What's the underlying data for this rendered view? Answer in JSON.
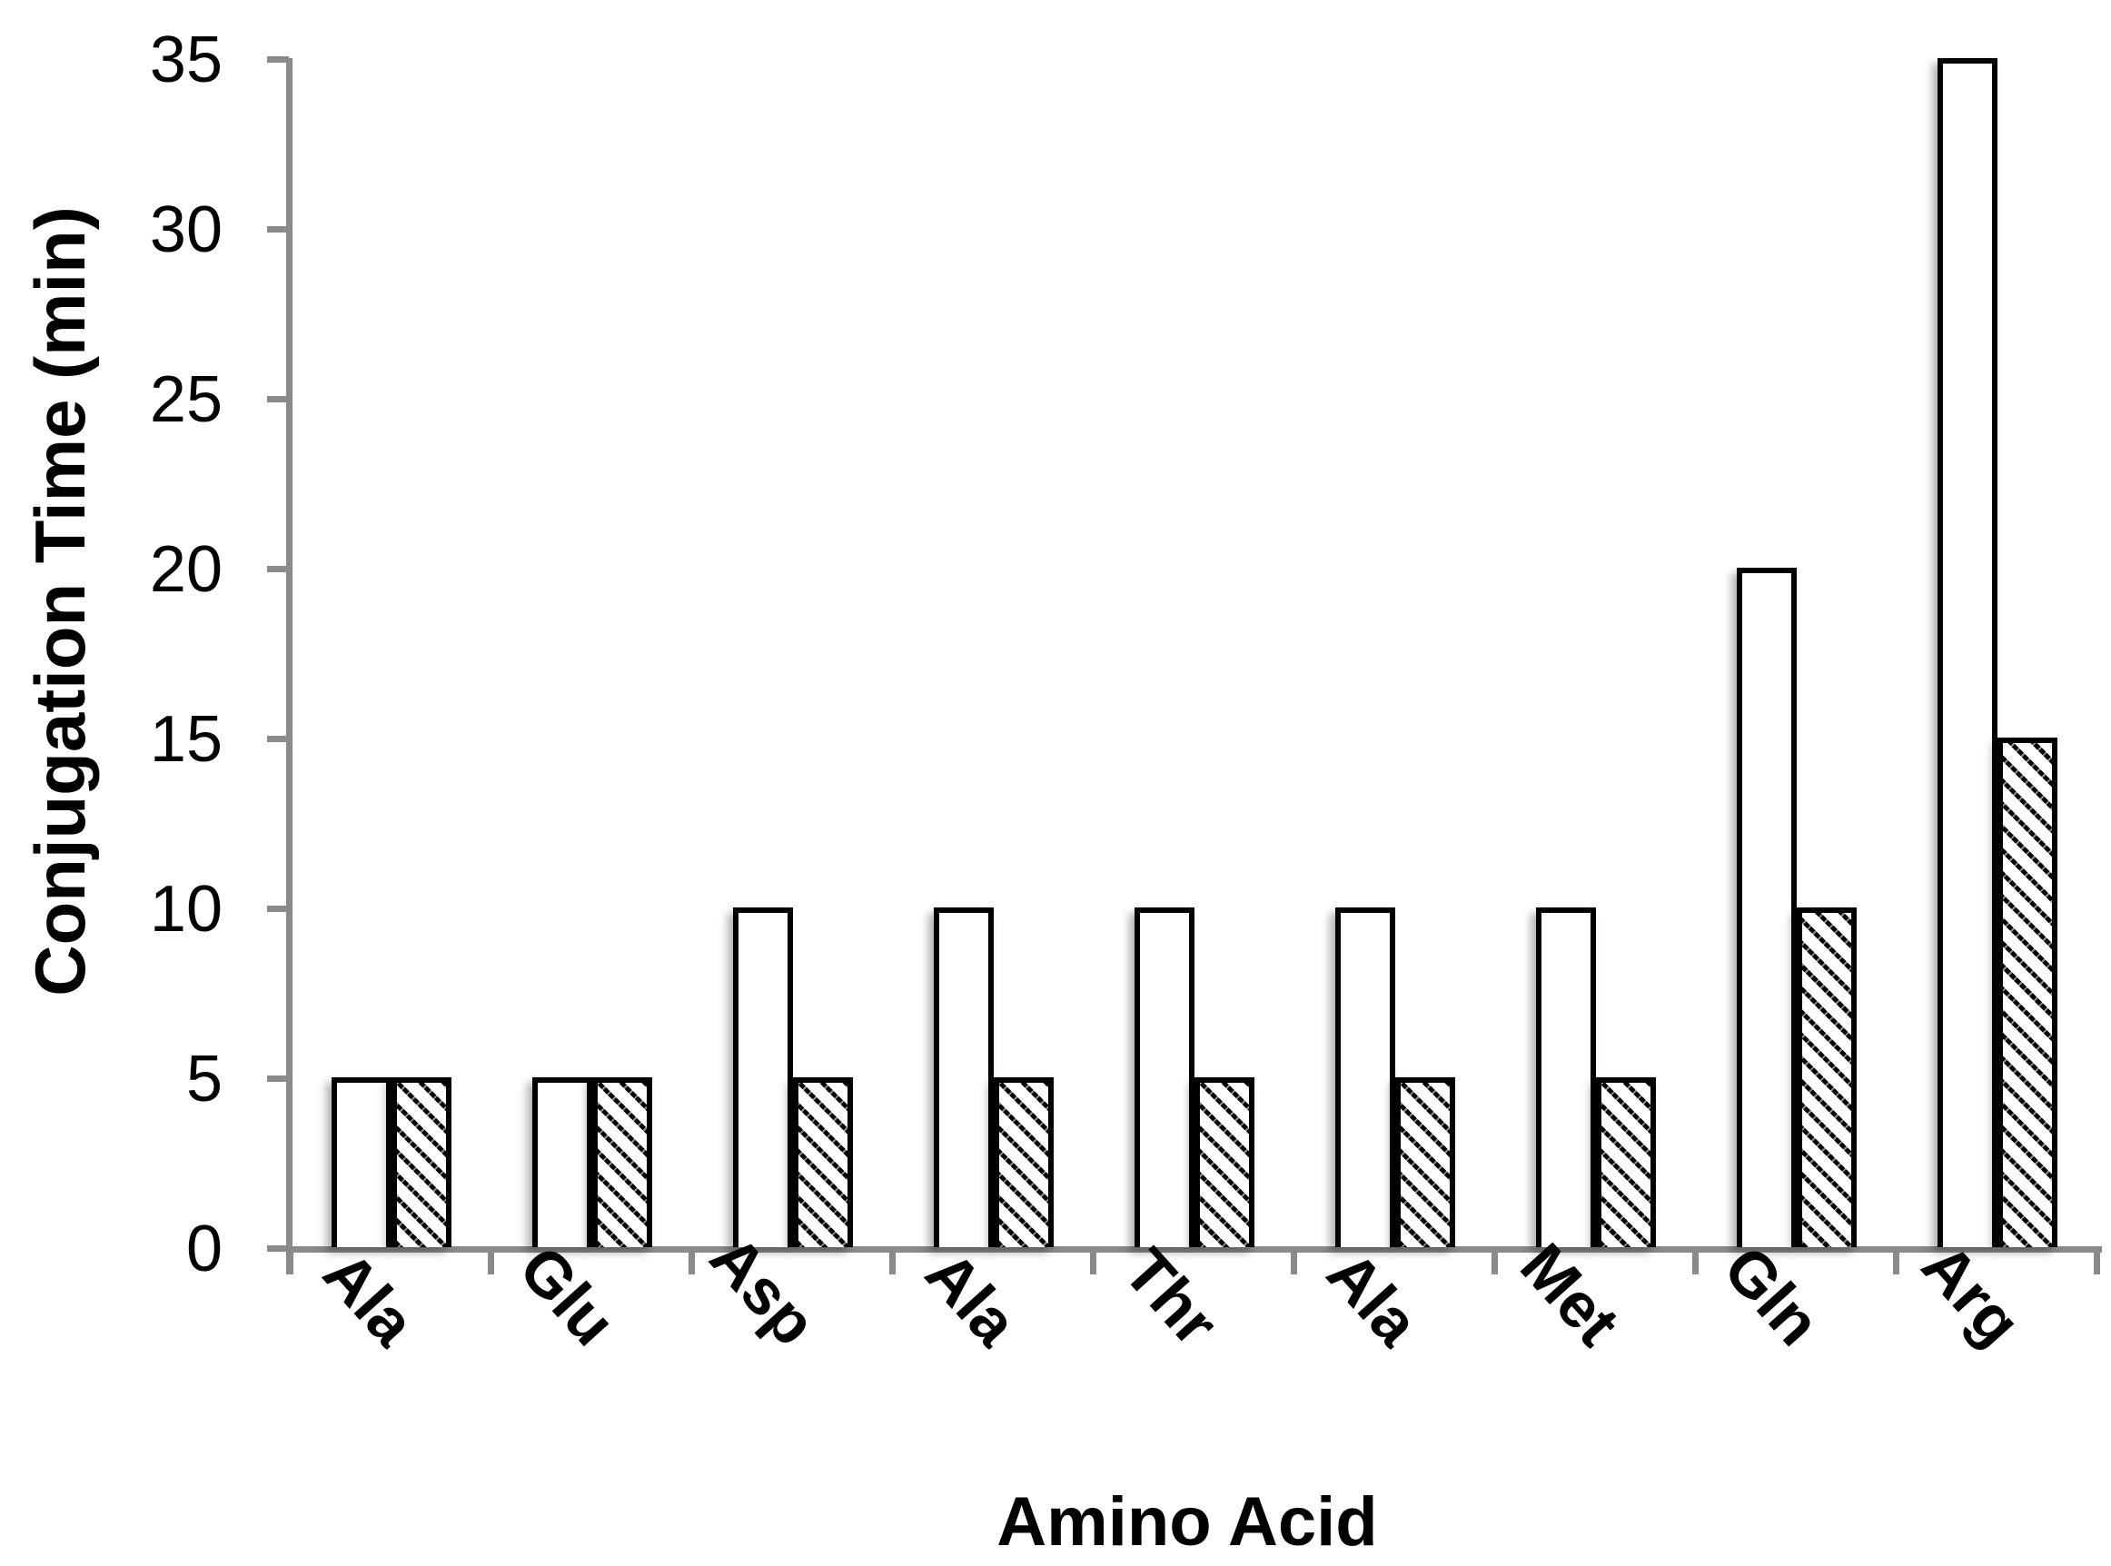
{
  "page": {
    "background_color": "#ffffff"
  },
  "chart_data": {
    "type": "bar",
    "title": "",
    "xlabel": "Amino Acid",
    "ylabel": "Conjugation Time (min)",
    "categories": [
      "Ala",
      "Glu",
      "Asp",
      "Ala",
      "Thr",
      "Ala",
      "Met",
      "Gln",
      "Arg"
    ],
    "series": [
      {
        "name": "series-1-plain-white",
        "pattern": "solid-white",
        "values": [
          5,
          5,
          10,
          10,
          10,
          10,
          10,
          20,
          35
        ]
      },
      {
        "name": "series-2-diagonal-hatch",
        "pattern": "diagonal-hatch",
        "values": [
          5,
          5,
          5,
          5,
          5,
          5,
          5,
          10,
          15
        ]
      }
    ],
    "ylim": [
      0,
      35
    ],
    "yticks": [
      0,
      5,
      10,
      15,
      20,
      25,
      30,
      35
    ],
    "ytick_labels": [
      "0",
      "5",
      "10",
      "15",
      "20",
      "25",
      "30",
      "35"
    ],
    "legend": "none",
    "grid": "off",
    "axis_color": "#8a8a8a",
    "bar_border_color": "#000000",
    "category_label_rotation_deg": 48
  }
}
